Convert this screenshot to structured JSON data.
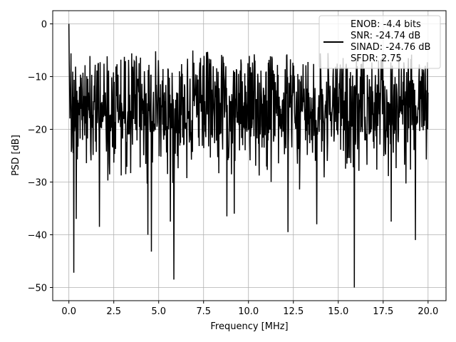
{
  "chart_data": {
    "type": "line",
    "title": "",
    "xlabel": "Frequency [MHz]",
    "ylabel": "PSD [dB]",
    "xlim": [
      -0.9,
      21.0
    ],
    "ylim": [
      -52.5,
      2.5
    ],
    "grid": true,
    "legend_position": "top-right",
    "x_ticks": [
      0.0,
      2.5,
      5.0,
      7.5,
      10.0,
      12.5,
      15.0,
      17.5,
      20.0
    ],
    "x_tick_labels": [
      "0.0",
      "2.5",
      "5.0",
      "7.5",
      "10.0",
      "12.5",
      "15.0",
      "17.5",
      "20.0"
    ],
    "y_ticks": [
      0,
      -10,
      -20,
      -30,
      -40,
      -50
    ],
    "y_tick_labels": [
      "0",
      "−10",
      "−20",
      "−30",
      "−40",
      "−50"
    ],
    "series": [
      {
        "color": "#000000",
        "legend_lines": [
          "ENOB: -4.4 bits",
          "SNR: -24.74 dB",
          "SINAD: -24.76 dB",
          "SFDR: 2.75"
        ],
        "x_range": [
          0,
          20
        ],
        "points": 1024,
        "notable_points": [
          {
            "x": 0.0,
            "y": 0.0
          },
          {
            "x": 0.28,
            "y": -47.2
          },
          {
            "x": 0.42,
            "y": -37.0
          },
          {
            "x": 1.7,
            "y": -38.5
          },
          {
            "x": 4.4,
            "y": -40.0
          },
          {
            "x": 4.6,
            "y": -43.2
          },
          {
            "x": 5.65,
            "y": -37.5
          },
          {
            "x": 5.85,
            "y": -48.5
          },
          {
            "x": 8.8,
            "y": -36.5
          },
          {
            "x": 9.2,
            "y": -36.0
          },
          {
            "x": 12.2,
            "y": -39.5
          },
          {
            "x": 13.8,
            "y": -38.0
          },
          {
            "x": 15.9,
            "y": -50.0
          },
          {
            "x": 17.95,
            "y": -37.5
          },
          {
            "x": 19.3,
            "y": -41.0
          }
        ]
      }
    ]
  }
}
